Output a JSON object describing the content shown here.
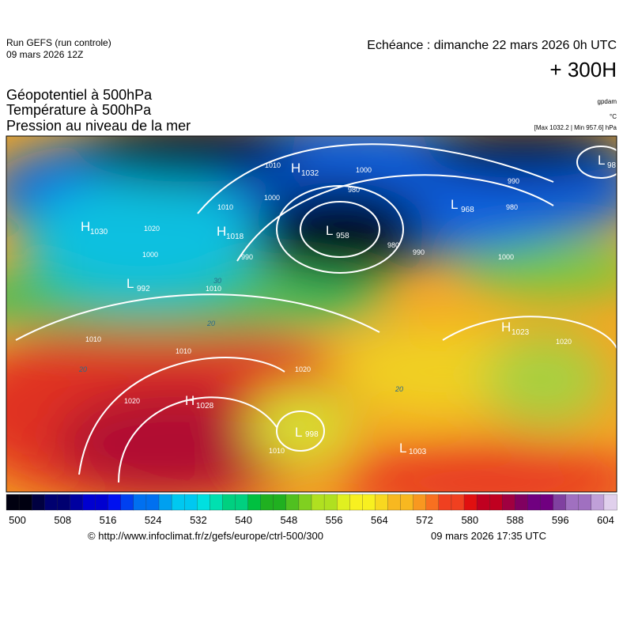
{
  "header": {
    "run": "Run GEFS (run controle)",
    "date": "09 mars 2026 12Z",
    "echeance": "Echéance : dimanche 22 mars 2026 0h UTC",
    "lead": "+ 300H"
  },
  "fields": [
    "Géopotentiel à 500hPa",
    "Température à 500hPa",
    "Pression au niveau de la mer"
  ],
  "units": [
    "gpdam",
    "°C",
    "[Max 1032.2 | Min 957.6] hPa"
  ],
  "centers": [
    {
      "kind": "H",
      "value": "1030"
    },
    {
      "kind": "H",
      "value": "1018"
    },
    {
      "kind": "L",
      "value": "958"
    },
    {
      "kind": "H",
      "value": "1032"
    },
    {
      "kind": "L",
      "value": "968"
    },
    {
      "kind": "L",
      "value": "98"
    },
    {
      "kind": "L",
      "value": "992"
    },
    {
      "kind": "H",
      "value": "1028"
    },
    {
      "kind": "L",
      "value": "998"
    },
    {
      "kind": "L",
      "value": "1003"
    },
    {
      "kind": "H",
      "value": "1023"
    }
  ],
  "isobar_labels": [
    "1010",
    "1000",
    "980",
    "990",
    "980",
    "1010",
    "1020",
    "1000",
    "1000",
    "990",
    "980",
    "990",
    "1000",
    "1010",
    "1010",
    "1010",
    "1020",
    "1020",
    "1020",
    "1010"
  ],
  "temperature_labels": [
    "30",
    "20",
    "20",
    "20"
  ],
  "colorbar_labels": [
    "500",
    "508",
    "516",
    "524",
    "532",
    "540",
    "548",
    "556",
    "564",
    "572",
    "580",
    "588",
    "596",
    "604"
  ],
  "footer": {
    "url": "© http://www.infoclimat.fr/z/gefs/europe/ctrl-500/300",
    "time": "09 mars 2026 17:35 UTC"
  }
}
